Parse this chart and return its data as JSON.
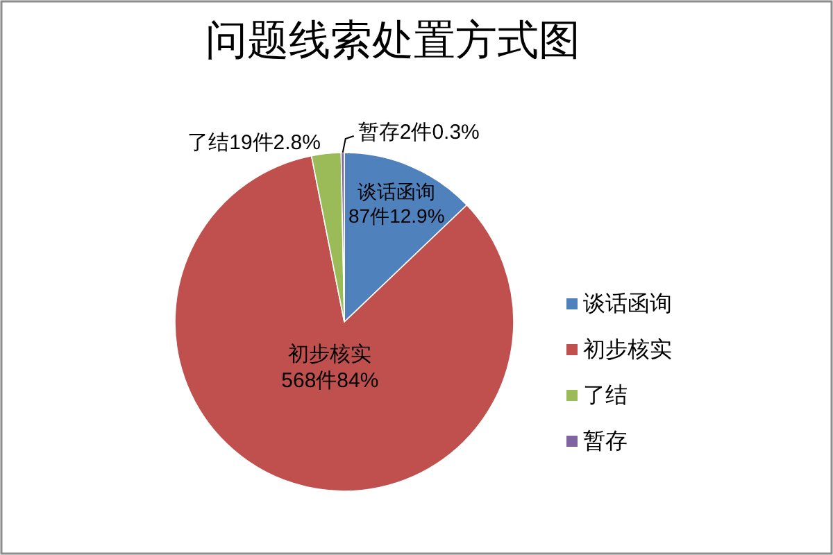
{
  "chart_data": {
    "type": "pie",
    "title": "问题线索处置方式图",
    "categories": [
      "谈话函询",
      "初步核实",
      "了结",
      "暂存"
    ],
    "values": [
      87,
      568,
      19,
      2
    ],
    "colors": [
      "#4f81bd",
      "#c0504d",
      "#9bbb59",
      "#8064a2"
    ],
    "value_labels": [
      "谈话函询\n87件12.9%",
      "初步核实\n568件84%",
      "了结19件2.8%",
      "暂存2件0.3%"
    ],
    "legend": "right"
  }
}
